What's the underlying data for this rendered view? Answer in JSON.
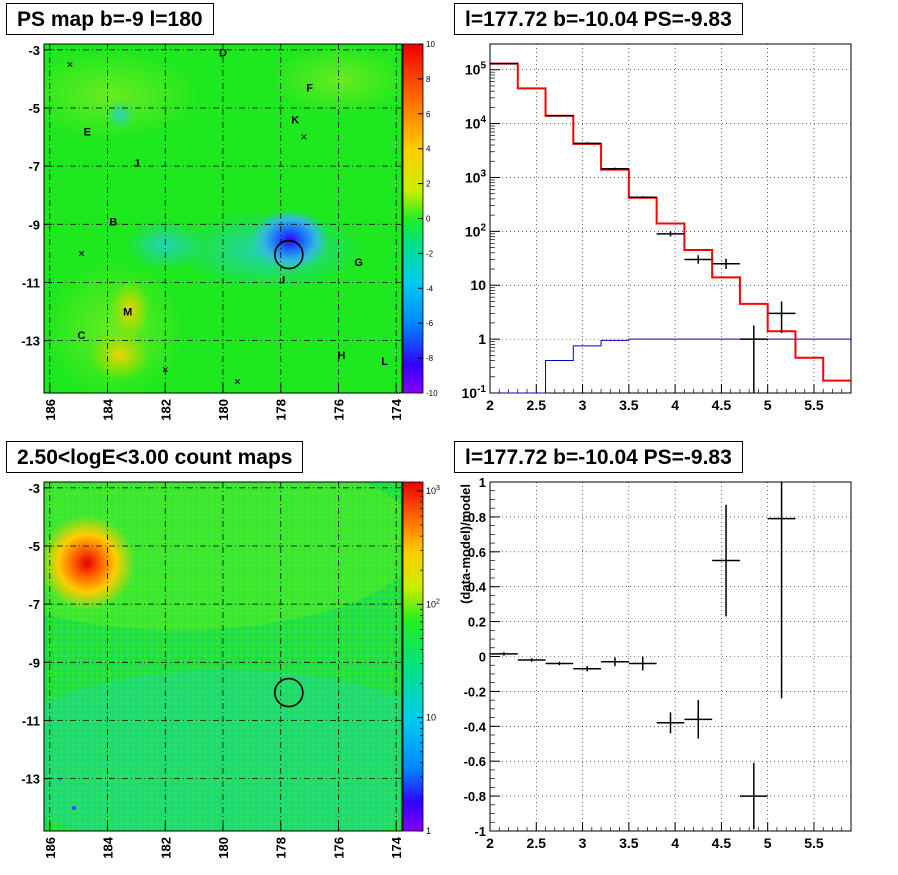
{
  "panels": {
    "map_top_title": "PS map b=-9 l=180",
    "spec_top_title": "l=177.72 b=-10.04 PS=-9.83",
    "map_bottom_title": "2.50<logE<3.00 count maps",
    "spec_bottom_title": "l=177.72 b=-10.04 PS=-9.83"
  },
  "colors": {
    "model_line": "#ff0000",
    "bkg_line": "#0000cc",
    "data": "#000000",
    "map_background": "#1ae61a"
  },
  "chart_data": [
    {
      "type": "heatmap",
      "title": "PS map b=-9 l=180",
      "x_ticks": [
        "186",
        "184",
        "182",
        "180",
        "178",
        "176",
        "174"
      ],
      "y_ticks": [
        "-3",
        "-5",
        "-7",
        "-9",
        "-11",
        "-13"
      ],
      "xlim": [
        186.2,
        173.8
      ],
      "ylim": [
        -14.8,
        -2.8
      ],
      "colorbar": {
        "ticks": [
          "10",
          "8",
          "6",
          "4",
          "2",
          "0",
          "-2",
          "-4",
          "-6",
          "-8",
          "-10"
        ],
        "range": [
          -10,
          10
        ]
      },
      "sources": [
        {
          "label": "D",
          "l": 180.0,
          "b": -3.1
        },
        {
          "label": "F",
          "l": 177.0,
          "b": -4.3
        },
        {
          "label": "K",
          "l": 177.5,
          "b": -5.4
        },
        {
          "label": "E",
          "l": 184.7,
          "b": -5.8
        },
        {
          "label": "J",
          "l": 183.0,
          "b": -6.9
        },
        {
          "label": "B",
          "l": 183.8,
          "b": -8.9
        },
        {
          "label": "G",
          "l": 175.3,
          "b": -10.3
        },
        {
          "label": "I",
          "l": 177.9,
          "b": -10.9
        },
        {
          "label": "M",
          "l": 183.3,
          "b": -12.0
        },
        {
          "label": "C",
          "l": 184.9,
          "b": -12.8
        },
        {
          "label": "H",
          "l": 175.9,
          "b": -13.5
        },
        {
          "label": "L",
          "l": 174.4,
          "b": -13.7
        }
      ],
      "crosses": [
        {
          "l": 185.3,
          "b": -3.5
        },
        {
          "l": 177.2,
          "b": -6.0
        },
        {
          "l": 184.9,
          "b": -10.0
        },
        {
          "l": 182.0,
          "b": -14.0
        },
        {
          "l": 179.5,
          "b": -14.4
        }
      ],
      "marker_circle": {
        "l": 177.72,
        "b": -10.04
      }
    },
    {
      "type": "line",
      "title": "l=177.72 b=-10.04 PS=-9.83",
      "xlim": [
        2.0,
        5.9
      ],
      "ylim": [
        0.1,
        300000
      ],
      "yscale": "log",
      "grid": true,
      "x_ticks": [
        "2",
        "2.5",
        "3",
        "3.5",
        "4",
        "4.5",
        "5",
        "5.5"
      ],
      "y_ticks": [
        "10^-1",
        "1",
        "10",
        "10^2",
        "10^3",
        "10^4",
        "10^5"
      ],
      "series": [
        {
          "role": "model",
          "bin_edges": [
            2.0,
            2.3,
            2.6,
            2.9,
            3.2,
            3.5,
            3.8,
            4.1,
            4.4,
            4.7,
            5.0,
            5.3,
            5.6,
            5.9
          ],
          "values": [
            130000,
            45000,
            14000,
            4200,
            1400,
            420,
            140,
            45,
            14,
            4.5,
            1.4,
            0.45,
            0.17
          ]
        },
        {
          "role": "background",
          "bin_edges": [
            2.0,
            2.3,
            2.6,
            2.9,
            3.2,
            3.5,
            3.8,
            4.1,
            4.4,
            4.7,
            5.0,
            5.3,
            5.6,
            5.9
          ],
          "values": [
            0.03,
            0.03,
            0.4,
            0.75,
            0.95,
            1.0,
            1.0,
            1.0,
            1.0,
            1.0,
            1.0,
            1.0,
            1.0
          ]
        },
        {
          "role": "data",
          "points": [
            {
              "x": 2.15,
              "y": 130000,
              "lo": 129000,
              "hi": 131000
            },
            {
              "x": 2.75,
              "y": 14000,
              "lo": 13700,
              "hi": 14300
            },
            {
              "x": 3.05,
              "y": 4300,
              "lo": 4100,
              "hi": 4500
            },
            {
              "x": 3.35,
              "y": 1450,
              "lo": 1380,
              "hi": 1520
            },
            {
              "x": 3.65,
              "y": 430,
              "lo": 410,
              "hi": 450
            },
            {
              "x": 3.95,
              "y": 90,
              "lo": 80,
              "hi": 100
            },
            {
              "x": 4.25,
              "y": 30,
              "lo": 25,
              "hi": 36
            },
            {
              "x": 4.55,
              "y": 25,
              "lo": 20,
              "hi": 31
            },
            {
              "x": 4.85,
              "y": 1.0,
              "lo": 0.1,
              "hi": 1.8
            },
            {
              "x": 5.15,
              "y": 3.0,
              "lo": 1.3,
              "hi": 5.0
            }
          ]
        }
      ]
    },
    {
      "type": "heatmap",
      "title": "2.50<logE<3.00 count maps",
      "x_ticks": [
        "186",
        "184",
        "182",
        "180",
        "178",
        "176",
        "174"
      ],
      "y_ticks": [
        "-3",
        "-5",
        "-7",
        "-9",
        "-11",
        "-13"
      ],
      "xlim": [
        186.2,
        173.8
      ],
      "ylim": [
        -14.8,
        -2.8
      ],
      "colorbar": {
        "ticks": [
          "10^3",
          "10^2",
          "10",
          "1"
        ],
        "scale": "log",
        "range": [
          1,
          1200
        ]
      },
      "marker_circle": {
        "l": 177.72,
        "b": -10.04
      }
    },
    {
      "type": "scatter",
      "title": "l=177.72 b=-10.04 PS=-9.83",
      "ylabel": "(data-model)/model",
      "xlim": [
        2.0,
        5.9
      ],
      "ylim": [
        -1.0,
        1.0
      ],
      "grid": true,
      "x_ticks": [
        "2",
        "2.5",
        "3",
        "3.5",
        "4",
        "4.5",
        "5",
        "5.5"
      ],
      "y_ticks": [
        "-1",
        "-0.8",
        "-0.6",
        "-0.4",
        "-0.2",
        "0",
        "0.2",
        "0.4",
        "0.6",
        "0.8",
        "1"
      ],
      "points": [
        {
          "x": 2.15,
          "y": 0.015,
          "xerr": 0.15,
          "yerr": 0.01
        },
        {
          "x": 2.45,
          "y": -0.02,
          "xerr": 0.15,
          "yerr": 0.01
        },
        {
          "x": 2.75,
          "y": -0.04,
          "xerr": 0.15,
          "yerr": 0.01
        },
        {
          "x": 3.05,
          "y": -0.07,
          "xerr": 0.15,
          "yerr": 0.015
        },
        {
          "x": 3.35,
          "y": -0.03,
          "xerr": 0.15,
          "yerr": 0.025
        },
        {
          "x": 3.65,
          "y": -0.04,
          "xerr": 0.15,
          "yerr": 0.04
        },
        {
          "x": 3.95,
          "y": -0.38,
          "xerr": 0.15,
          "yerr": 0.06
        },
        {
          "x": 4.25,
          "y": -0.36,
          "xerr": 0.15,
          "yerr": 0.11
        },
        {
          "x": 4.55,
          "y": 0.55,
          "xerr": 0.15,
          "yerr": 0.32
        },
        {
          "x": 4.85,
          "y": -0.8,
          "xerr": 0.15,
          "yerr": 0.19
        },
        {
          "x": 5.15,
          "y": 0.79,
          "xerr": 0.15,
          "yerr": 1.03
        }
      ]
    }
  ]
}
